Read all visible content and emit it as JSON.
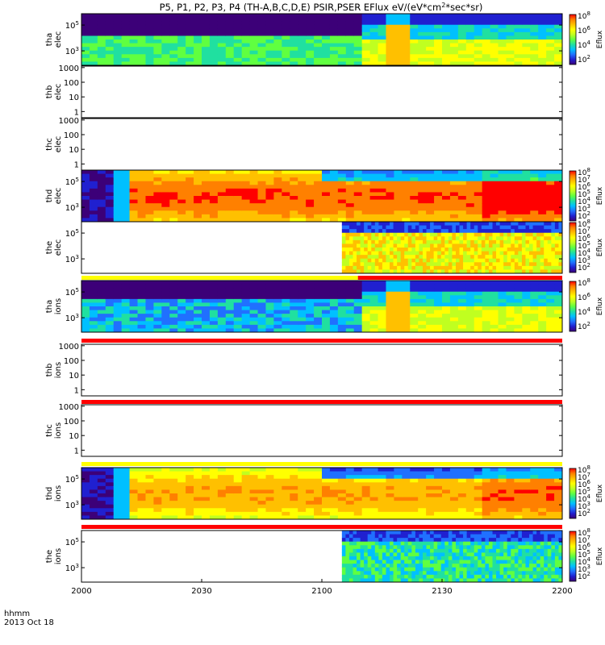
{
  "title_html_parts": {
    "prefix": "P5, P1, P2, P3, P4 (TH-A,B,C,D,E) PSIR,PSER EFlux eV/(eV*cm",
    "sup": "2",
    "suffix": "*sec*sr)"
  },
  "xaxis": {
    "ticks": [
      "2000",
      "2030",
      "2100",
      "2130",
      "2200"
    ],
    "label_line1": "hhmm",
    "label_line2": "2013 Oct 18"
  },
  "colorbar_label": "Eflux",
  "chart_data": {
    "type": "heatmap",
    "x_range": [
      "20:00",
      "22:00"
    ],
    "panels": [
      {
        "probe": "tha",
        "species": "elec",
        "yscale": "log",
        "yticks": [
          "10^5",
          "10^3"
        ],
        "has_colorbar": true,
        "cb_ticks": [
          "10^8",
          "10^6",
          "10^4",
          "10^2"
        ],
        "data_start": "20:00"
      },
      {
        "probe": "thb",
        "species": "elec",
        "yscale": "log",
        "yticks": [
          "1000",
          "100",
          "10",
          "1"
        ],
        "has_colorbar": false,
        "data_start": null
      },
      {
        "probe": "thc",
        "species": "elec",
        "yscale": "log",
        "yticks": [
          "1000",
          "100",
          "10",
          "1"
        ],
        "has_colorbar": false,
        "data_start": null
      },
      {
        "probe": "thd",
        "species": "elec",
        "yscale": "log",
        "yticks": [
          "10^5",
          "10^3"
        ],
        "has_colorbar": true,
        "cb_ticks": [
          "10^8",
          "10^7",
          "10^6",
          "10^5",
          "10^4",
          "10^3",
          "10^2"
        ],
        "data_start": "20:00"
      },
      {
        "probe": "the",
        "species": "elec",
        "yscale": "log",
        "yticks": [
          "10^5",
          "10^3"
        ],
        "has_colorbar": true,
        "cb_ticks": [
          "10^8",
          "10^7",
          "10^6",
          "10^5",
          "10^4",
          "10^3",
          "10^2"
        ],
        "data_start": "21:05"
      },
      {
        "probe": "tha",
        "species": "ions",
        "yscale": "log",
        "yticks": [
          "10^5",
          "10^3"
        ],
        "has_colorbar": true,
        "cb_ticks": [
          "10^8",
          "10^6",
          "10^4",
          "10^2"
        ],
        "data_start": "20:00"
      },
      {
        "probe": "thb",
        "species": "ions",
        "yscale": "log",
        "yticks": [
          "1000",
          "100",
          "10",
          "1"
        ],
        "has_colorbar": false,
        "data_start": null
      },
      {
        "probe": "thc",
        "species": "ions",
        "yscale": "log",
        "yticks": [
          "1000",
          "100",
          "10",
          "1"
        ],
        "has_colorbar": false,
        "data_start": null
      },
      {
        "probe": "thd",
        "species": "ions",
        "yscale": "log",
        "yticks": [
          "10^5",
          "10^3"
        ],
        "has_colorbar": true,
        "cb_ticks": [
          "10^8",
          "10^7",
          "10^6",
          "10^5",
          "10^4",
          "10^3",
          "10^2"
        ],
        "data_start": "20:00"
      },
      {
        "probe": "the",
        "species": "ions",
        "yscale": "log",
        "yticks": [
          "10^5",
          "10^3"
        ],
        "has_colorbar": true,
        "cb_ticks": [
          "10^8",
          "10^7",
          "10^6",
          "10^5",
          "10^4",
          "10^3",
          "10^2"
        ],
        "data_start": "21:05"
      }
    ]
  },
  "colors": {
    "flag_red": "#ff0000",
    "flag_yellow": "#ffff00",
    "fill_scale": [
      "#3c0078",
      "#2020d0",
      "#2070ff",
      "#00c0ff",
      "#20e0a0",
      "#60ff40",
      "#c0ff20",
      "#ffff00",
      "#ffc000",
      "#ff8000",
      "#ff0000"
    ]
  }
}
